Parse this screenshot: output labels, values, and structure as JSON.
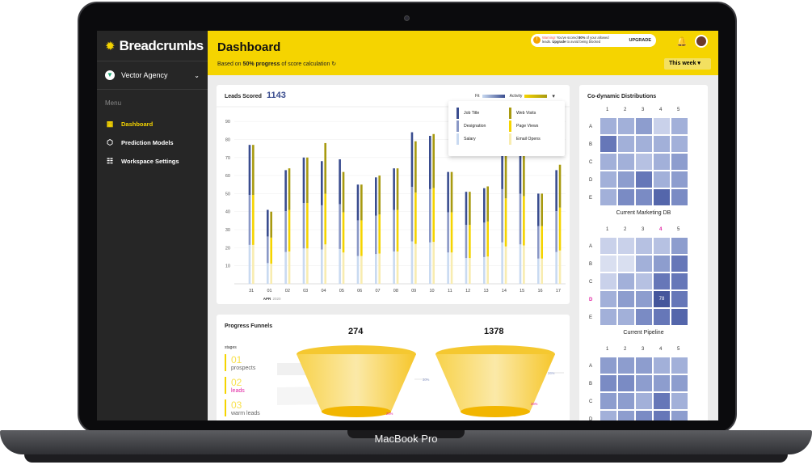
{
  "device": {
    "brand_label": "MacBook Pro"
  },
  "sidebar": {
    "logo": "Breadcrumbs",
    "agency": "Vector Agency",
    "menu_label": "Menu",
    "items": [
      {
        "label": "Dashboard",
        "icon": "grid-icon",
        "active": true
      },
      {
        "label": "Prediction Models",
        "icon": "cube-icon",
        "active": false
      },
      {
        "label": "Workspace Settings",
        "icon": "sliders-icon",
        "active": false
      }
    ]
  },
  "header": {
    "title": "Dashboard",
    "subtitle_prefix": "Based on",
    "subtitle_strong": "50% progress",
    "subtitle_suffix": "of score calculation",
    "warning_lead": "Warning!",
    "warning_body": "You've scored",
    "warning_strong": "80%",
    "warning_rest": "of your allowed leads.",
    "warning_upgrade": "Upgrade",
    "warning_tail": "to avoid being blocked",
    "upgrade_button": "UPGRADE",
    "period": "This week"
  },
  "leads_scored": {
    "title": "Leads Scored",
    "total": "1143",
    "legend_fit": "Fit",
    "legend_activity": "Activity",
    "dropdown": [
      {
        "label": "Job Title",
        "color": "#3a4d8f"
      },
      {
        "label": "Designation",
        "color": "#8a98c6"
      },
      {
        "label": "Salary",
        "color": "#c9daf1"
      },
      {
        "label": "Web Visits",
        "color": "#a89a10"
      },
      {
        "label": "Page Views",
        "color": "#f5d400"
      },
      {
        "label": "Email Opens",
        "color": "#f8ecb0"
      }
    ],
    "month_label": "APR",
    "year_label": "2020"
  },
  "chart_data": {
    "type": "bar",
    "title": "Leads Scored",
    "ylim": [
      0,
      95
    ],
    "yticks": [
      10,
      20,
      30,
      40,
      50,
      60,
      70,
      80,
      90
    ],
    "categories": [
      "31",
      "01",
      "02",
      "03",
      "04",
      "05",
      "06",
      "07",
      "08",
      "09",
      "10",
      "11",
      "12",
      "13",
      "14",
      "15",
      "16",
      "17"
    ],
    "series": [
      {
        "name": "Fit",
        "values": [
          77,
          41,
          63,
          70,
          68,
          69,
          55,
          59,
          64,
          84,
          82,
          62,
          51,
          53,
          82,
          78,
          50,
          63
        ]
      },
      {
        "name": "Activity",
        "values": [
          77,
          40,
          64,
          70,
          78,
          62,
          55,
          60,
          64,
          79,
          83,
          62,
          51,
          54,
          74,
          76,
          50,
          66
        ]
      }
    ]
  },
  "funnels": {
    "title": "Progress Funnels",
    "stages_header": "stages",
    "stages": [
      {
        "num": "01",
        "label": "prospects"
      },
      {
        "num": "02",
        "label": "leads"
      },
      {
        "num": "03",
        "label": "warm leads"
      }
    ],
    "funnel_a": {
      "total": "274",
      "pct1": "30%",
      "pct2": "28%"
    },
    "funnel_b": {
      "total": "1378",
      "pct1": "26%",
      "pct2": "26%"
    }
  },
  "codynamic": {
    "title": "Co-dynamic Distributions",
    "columns": [
      "1",
      "2",
      "3",
      "4",
      "5"
    ],
    "rows": [
      "A",
      "B",
      "C",
      "D",
      "E"
    ],
    "maps": [
      {
        "name": "Current Marketing DB",
        "values": [
          [
            5,
            5,
            6,
            3,
            5
          ],
          [
            8,
            5,
            5,
            5,
            5
          ],
          [
            5,
            5,
            4,
            5,
            6
          ],
          [
            5,
            6,
            8,
            5,
            6
          ],
          [
            5,
            7,
            7,
            9,
            7
          ]
        ]
      },
      {
        "name": "Current Pipeline",
        "highlight_col": "4",
        "highlight_row": "D",
        "value_label": "78",
        "values": [
          [
            3,
            3,
            4,
            4,
            6
          ],
          [
            2,
            2,
            5,
            6,
            8
          ],
          [
            3,
            5,
            4,
            8,
            8
          ],
          [
            5,
            6,
            6,
            10,
            8
          ],
          [
            5,
            5,
            7,
            8,
            9
          ]
        ]
      },
      {
        "name": "",
        "values": [
          [
            6,
            6,
            6,
            5,
            5
          ],
          [
            7,
            7,
            6,
            6,
            6
          ],
          [
            6,
            6,
            5,
            8,
            5
          ],
          [
            5,
            6,
            7,
            8,
            6
          ],
          [
            5,
            5,
            6,
            7,
            6
          ]
        ]
      }
    ]
  },
  "colors": {
    "accent": "#f5d400",
    "fit_dark": "#3a4d8f",
    "fit_mid": "#8a98c6",
    "fit_light": "#c9daf1",
    "act_dark": "#a89a10",
    "act_mid": "#f5d400",
    "act_light": "#f8ecb0"
  }
}
